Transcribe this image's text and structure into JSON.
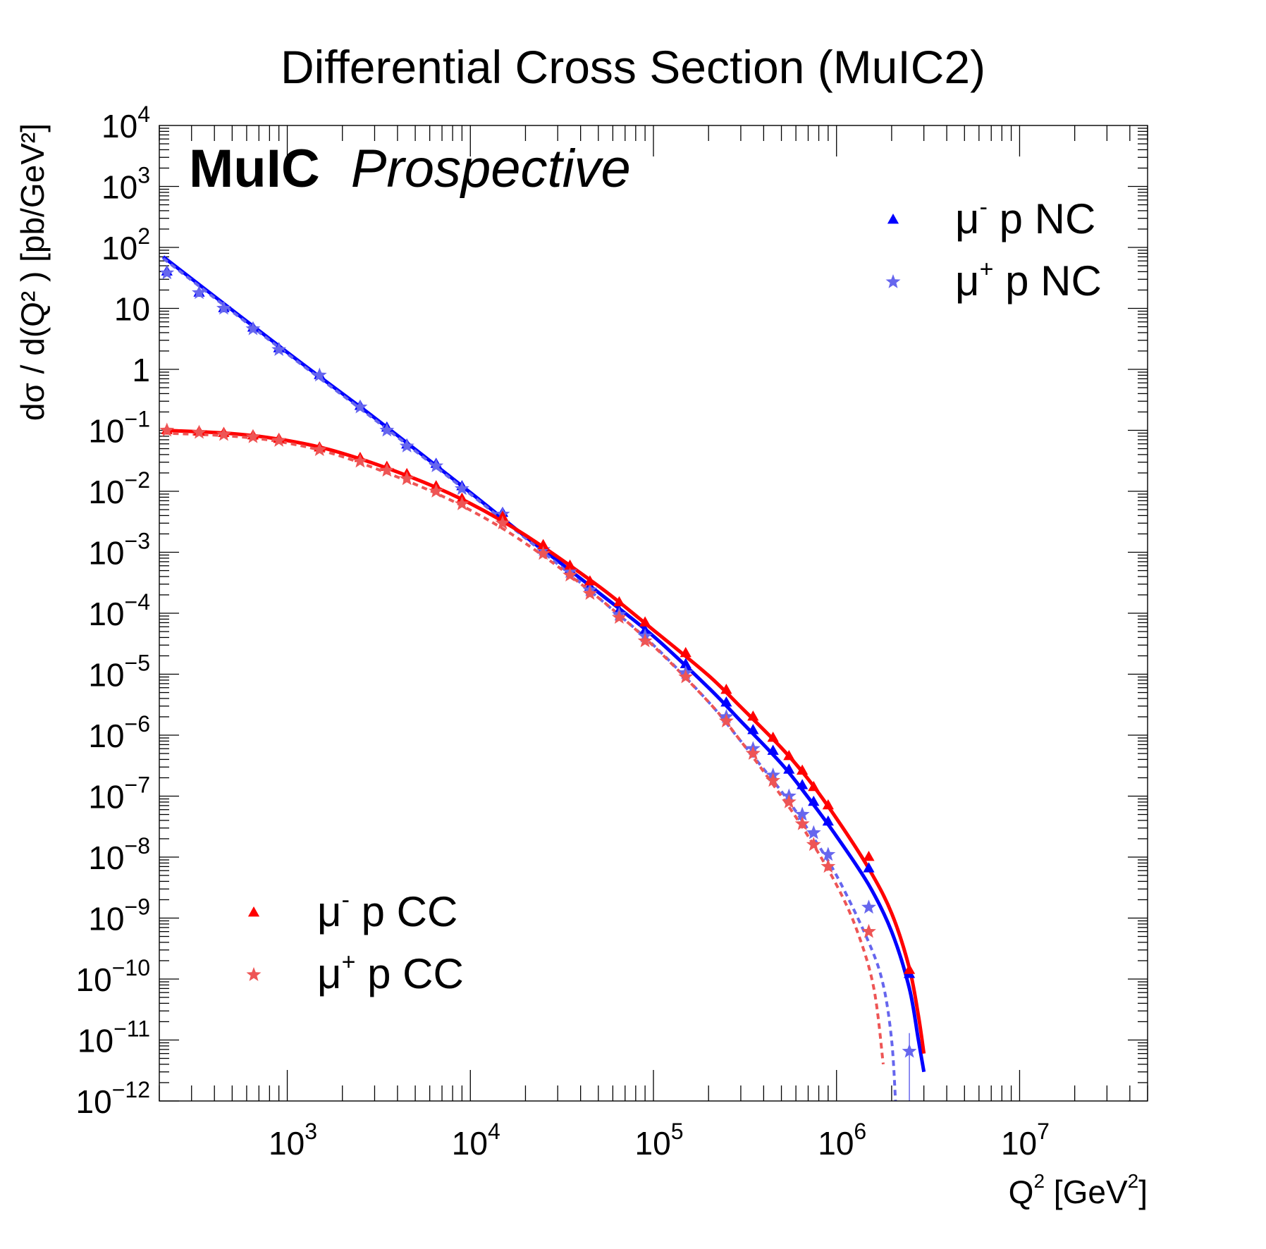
{
  "chart_data": {
    "type": "scatter",
    "title": "Differential Cross Section (MuIC2)",
    "watermark": {
      "bold": "MuIC",
      "italic": "Prospective"
    },
    "xlabel": {
      "base": "Q",
      "sup": "2",
      "unit_open": " [GeV",
      "unit_sup": "2",
      "unit_close": "]"
    },
    "ylabel": {
      "text": "dσ / d(Q² ) [pb/GeV²]"
    },
    "xscale": "log",
    "yscale": "log",
    "xlim": [
      200,
      50000000
    ],
    "ylim": [
      1e-12,
      10000
    ],
    "x_ticks": [
      {
        "value": 1000,
        "base": "10",
        "exp": "3"
      },
      {
        "value": 10000,
        "base": "10",
        "exp": "4"
      },
      {
        "value": 100000,
        "base": "10",
        "exp": "5"
      },
      {
        "value": 1000000,
        "base": "10",
        "exp": "6"
      },
      {
        "value": 10000000,
        "base": "10",
        "exp": "7"
      }
    ],
    "y_ticks": [
      {
        "value": 10000,
        "base": "10",
        "exp": "4"
      },
      {
        "value": 1000,
        "base": "10",
        "exp": "3"
      },
      {
        "value": 100,
        "base": "10",
        "exp": "2"
      },
      {
        "value": 10,
        "base": "10",
        "exp": ""
      },
      {
        "value": 1,
        "base": "1",
        "exp": ""
      },
      {
        "value": 0.1,
        "base": "10",
        "exp": "−1"
      },
      {
        "value": 0.01,
        "base": "10",
        "exp": "−2"
      },
      {
        "value": 0.001,
        "base": "10",
        "exp": "−3"
      },
      {
        "value": 0.0001,
        "base": "10",
        "exp": "−4"
      },
      {
        "value": 1e-05,
        "base": "10",
        "exp": "−5"
      },
      {
        "value": 1e-06,
        "base": "10",
        "exp": "−6"
      },
      {
        "value": 1e-07,
        "base": "10",
        "exp": "−7"
      },
      {
        "value": 1e-08,
        "base": "10",
        "exp": "−8"
      },
      {
        "value": 1e-09,
        "base": "10",
        "exp": "−9"
      },
      {
        "value": 1e-10,
        "base": "10",
        "exp": "−10"
      },
      {
        "value": 1e-11,
        "base": "10",
        "exp": "−11"
      },
      {
        "value": 1e-12,
        "base": "10",
        "exp": "−12"
      }
    ],
    "legends": [
      {
        "location": "top-right",
        "entries": [
          {
            "series": "mum_nc",
            "mu": "μ",
            "charge": "-",
            "rest": " p NC"
          },
          {
            "series": "mup_nc",
            "mu": "μ",
            "charge": "+",
            "rest": " p NC"
          }
        ]
      },
      {
        "location": "bottom-left",
        "entries": [
          {
            "series": "mum_cc",
            "mu": "μ",
            "charge": "-",
            "rest": " p CC"
          },
          {
            "series": "mup_cc",
            "mu": "μ",
            "charge": "+",
            "rest": " p CC"
          }
        ]
      }
    ],
    "series": [
      {
        "id": "mum_nc",
        "name": "μ- p NC",
        "color": "#0000ff",
        "marker": "triangle",
        "line": "solid",
        "points": [
          [
            220,
            40
          ],
          [
            330,
            18
          ],
          [
            450,
            10
          ],
          [
            650,
            4.8
          ],
          [
            900,
            2.2
          ],
          [
            1500,
            0.8
          ],
          [
            2500,
            0.25
          ],
          [
            3500,
            0.11
          ],
          [
            4500,
            0.058
          ],
          [
            6500,
            0.028
          ],
          [
            9000,
            0.012
          ],
          [
            15000,
            0.0044
          ],
          [
            25000,
            0.0011
          ],
          [
            35000,
            0.00052
          ],
          [
            45000,
            0.00027
          ],
          [
            65000,
            0.00011
          ],
          [
            90000,
            5.2e-05
          ],
          [
            150000,
            1.45e-05
          ],
          [
            250000,
            3.4e-06
          ],
          [
            350000,
            1.2e-06
          ],
          [
            450000,
            5.5e-07
          ],
          [
            550000,
            2.7e-07
          ],
          [
            650000,
            1.5e-07
          ],
          [
            750000,
            8e-08
          ],
          [
            900000,
            3.8e-08
          ],
          [
            1500000,
            6.5e-09
          ],
          [
            2500000,
            1.2e-10
          ]
        ],
        "curve": [
          [
            210,
            70
          ],
          [
            1000,
            1.9
          ],
          [
            3000,
            0.16
          ],
          [
            10000,
            0.0095
          ],
          [
            20000,
            0.0018
          ],
          [
            30000,
            0.00072
          ],
          [
            50000,
            0.00022
          ],
          [
            100000,
            4.2e-05
          ],
          [
            200000,
            6e-06
          ],
          [
            300000,
            1.7e-06
          ],
          [
            500000,
            3.4e-07
          ],
          [
            700000,
            9.5e-08
          ],
          [
            1000000,
            2.2e-08
          ],
          [
            1500000,
            3.5e-09
          ],
          [
            2000000,
            6e-10
          ],
          [
            2500000,
            7e-11
          ],
          [
            2800000,
            1e-11
          ],
          [
            3000000,
            3e-12
          ]
        ]
      },
      {
        "id": "mup_nc",
        "name": "μ+ p NC",
        "color": "#6666ee",
        "marker": "star",
        "line": "dashed",
        "points": [
          [
            220,
            38
          ],
          [
            330,
            18
          ],
          [
            450,
            10
          ],
          [
            650,
            4.6
          ],
          [
            900,
            2.1
          ],
          [
            1500,
            0.8
          ],
          [
            2500,
            0.24
          ],
          [
            3500,
            0.1
          ],
          [
            4500,
            0.055
          ],
          [
            6500,
            0.026
          ],
          [
            9000,
            0.011
          ],
          [
            15000,
            0.0042
          ],
          [
            25000,
            0.0011
          ],
          [
            35000,
            0.00048
          ],
          [
            45000,
            0.00024
          ],
          [
            65000,
            9.5e-05
          ],
          [
            90000,
            4.2e-05
          ],
          [
            150000,
            1.05e-05
          ],
          [
            250000,
            2e-06
          ],
          [
            350000,
            6e-07
          ],
          [
            450000,
            2.2e-07
          ],
          [
            550000,
            1e-07
          ],
          [
            650000,
            5e-08
          ],
          [
            750000,
            2.5e-08
          ],
          [
            900000,
            1.1e-08
          ],
          [
            1500000,
            1.5e-09
          ],
          [
            2500000,
            6.5e-12
          ]
        ],
        "curve": [
          [
            210,
            66
          ],
          [
            1000,
            1.8
          ],
          [
            3000,
            0.15
          ],
          [
            10000,
            0.009
          ],
          [
            20000,
            0.0017
          ],
          [
            30000,
            0.00064
          ],
          [
            50000,
            0.00018
          ],
          [
            100000,
            3e-05
          ],
          [
            200000,
            3.5e-06
          ],
          [
            300000,
            8e-07
          ],
          [
            500000,
            1.2e-07
          ],
          [
            700000,
            2.8e-08
          ],
          [
            1000000,
            5e-09
          ],
          [
            1500000,
            4e-10
          ],
          [
            1800000,
            8e-11
          ],
          [
            2000000,
            1e-11
          ],
          [
            2100000,
            1e-12
          ]
        ]
      },
      {
        "id": "mum_cc",
        "name": "μ- p CC",
        "color": "#ff0000",
        "marker": "triangle",
        "line": "solid",
        "points": [
          [
            220,
            0.1
          ],
          [
            330,
            0.095
          ],
          [
            450,
            0.09
          ],
          [
            650,
            0.082
          ],
          [
            900,
            0.072
          ],
          [
            1500,
            0.052
          ],
          [
            2500,
            0.035
          ],
          [
            3500,
            0.025
          ],
          [
            4500,
            0.019
          ],
          [
            6500,
            0.012
          ],
          [
            9000,
            0.0075
          ],
          [
            15000,
            0.0038
          ],
          [
            25000,
            0.0013
          ],
          [
            35000,
            0.0006
          ],
          [
            45000,
            0.00033
          ],
          [
            65000,
            0.00015
          ],
          [
            90000,
            7e-05
          ],
          [
            150000,
            2.2e-05
          ],
          [
            250000,
            5.5e-06
          ],
          [
            350000,
            2e-06
          ],
          [
            450000,
            9e-07
          ],
          [
            550000,
            4.5e-07
          ],
          [
            650000,
            2.6e-07
          ],
          [
            750000,
            1.4e-07
          ],
          [
            900000,
            7e-08
          ],
          [
            1500000,
            1e-08
          ],
          [
            2500000,
            1.4e-10
          ]
        ],
        "curve": [
          [
            210,
            0.1
          ],
          [
            500,
            0.088
          ],
          [
            1000,
            0.068
          ],
          [
            2000,
            0.042
          ],
          [
            5000,
            0.016
          ],
          [
            10000,
            0.0063
          ],
          [
            20000,
            0.0019
          ],
          [
            50000,
            0.00028
          ],
          [
            100000,
            5.3e-05
          ],
          [
            200000,
            9.5e-06
          ],
          [
            300000,
            2.9e-06
          ],
          [
            500000,
            6.2e-07
          ],
          [
            700000,
            1.9e-07
          ],
          [
            1000000,
            4.3e-08
          ],
          [
            1500000,
            6.5e-09
          ],
          [
            2000000,
            1.2e-09
          ],
          [
            2500000,
            1.5e-10
          ],
          [
            2800000,
            2.5e-11
          ],
          [
            3000000,
            6e-12
          ]
        ]
      },
      {
        "id": "mup_cc",
        "name": "μ+ p CC",
        "color": "#ee5555",
        "marker": "star",
        "line": "dashed",
        "points": [
          [
            220,
            0.1
          ],
          [
            330,
            0.092
          ],
          [
            450,
            0.085
          ],
          [
            650,
            0.078
          ],
          [
            900,
            0.068
          ],
          [
            1500,
            0.048
          ],
          [
            2500,
            0.031
          ],
          [
            3500,
            0.022
          ],
          [
            4500,
            0.016
          ],
          [
            6500,
            0.01
          ],
          [
            9000,
            0.0062
          ],
          [
            15000,
            0.003
          ],
          [
            25000,
            0.00095
          ],
          [
            35000,
            0.00042
          ],
          [
            45000,
            0.00021
          ],
          [
            65000,
            8.5e-05
          ],
          [
            90000,
            3.5e-05
          ],
          [
            150000,
            9e-06
          ],
          [
            250000,
            1.7e-06
          ],
          [
            350000,
            5e-07
          ],
          [
            450000,
            1.8e-07
          ],
          [
            550000,
            8e-08
          ],
          [
            650000,
            3.5e-08
          ],
          [
            750000,
            1.6e-08
          ],
          [
            900000,
            7e-09
          ],
          [
            1500000,
            6e-10
          ]
        ],
        "curve": [
          [
            210,
            0.09
          ],
          [
            500,
            0.08
          ],
          [
            1000,
            0.062
          ],
          [
            2000,
            0.037
          ],
          [
            5000,
            0.013
          ],
          [
            10000,
            0.0049
          ],
          [
            20000,
            0.0014
          ],
          [
            50000,
            0.00018
          ],
          [
            100000,
            2.9e-05
          ],
          [
            200000,
            3.5e-06
          ],
          [
            300000,
            8e-07
          ],
          [
            500000,
            1e-07
          ],
          [
            700000,
            2.2e-08
          ],
          [
            1000000,
            3.5e-09
          ],
          [
            1300000,
            6e-10
          ],
          [
            1600000,
            7e-11
          ],
          [
            1800000,
            4e-12
          ]
        ]
      }
    ]
  }
}
